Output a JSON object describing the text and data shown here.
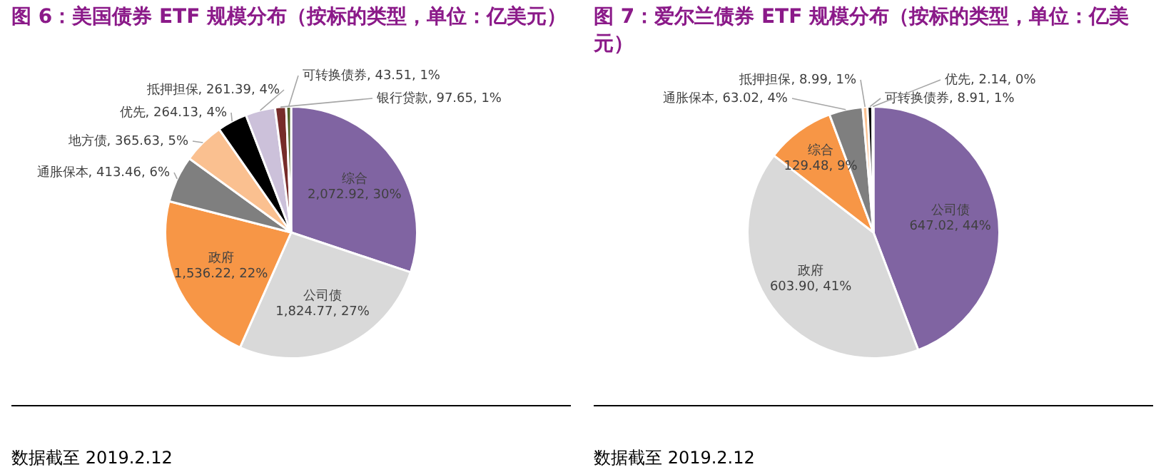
{
  "chart_data": [
    {
      "type": "pie",
      "title": "图 6：美国债券 ETF 规模分布（按标的类型，单位：亿美元）",
      "categories": [
        "综合",
        "公司债",
        "政府",
        "通胀保本",
        "地方债",
        "优先",
        "抵押担保",
        "银行贷款",
        "可转换债券"
      ],
      "values": [
        2072.92,
        1824.77,
        1536.22,
        413.46,
        365.63,
        264.13,
        261.39,
        97.65,
        43.51
      ],
      "colors": [
        "#8064a2",
        "#d9d9d9",
        "#f79646",
        "#7f7f7f",
        "#fac090",
        "#000000",
        "#ccc1da",
        "#772c2a",
        "#4f6228"
      ],
      "value_labels": [
        "2,072.92, 30%",
        "1,824.77, 27%",
        "1,536.22, 22%",
        "413.46, 6%",
        "365.63, 5%",
        "264.13, 4%",
        "261.39, 4%",
        "97.65, 1%",
        "43.51, 1%"
      ],
      "annotations": [
        "数据截至 2019.2.12"
      ]
    },
    {
      "type": "pie",
      "title": "图 7：爱尔兰债券 ETF 规模分布（按标的类型，单位：亿美元）",
      "categories": [
        "公司债",
        "政府",
        "综合",
        "通胀保本",
        "抵押担保",
        "可转换债券",
        "优先"
      ],
      "values": [
        647.02,
        603.9,
        129.48,
        63.02,
        8.99,
        8.91,
        2.14
      ],
      "colors": [
        "#8064a2",
        "#d9d9d9",
        "#f79646",
        "#7f7f7f",
        "#fac090",
        "#000000",
        "#ccc1da"
      ],
      "value_labels": [
        "647.02, 44%",
        "603.90, 41%",
        "129.48, 9%",
        "63.02, 4%",
        "8.99, 1%",
        "8.91, 1%",
        "2.14, 0%"
      ],
      "annotations": [
        "数据截至 2019.2.12"
      ]
    }
  ]
}
